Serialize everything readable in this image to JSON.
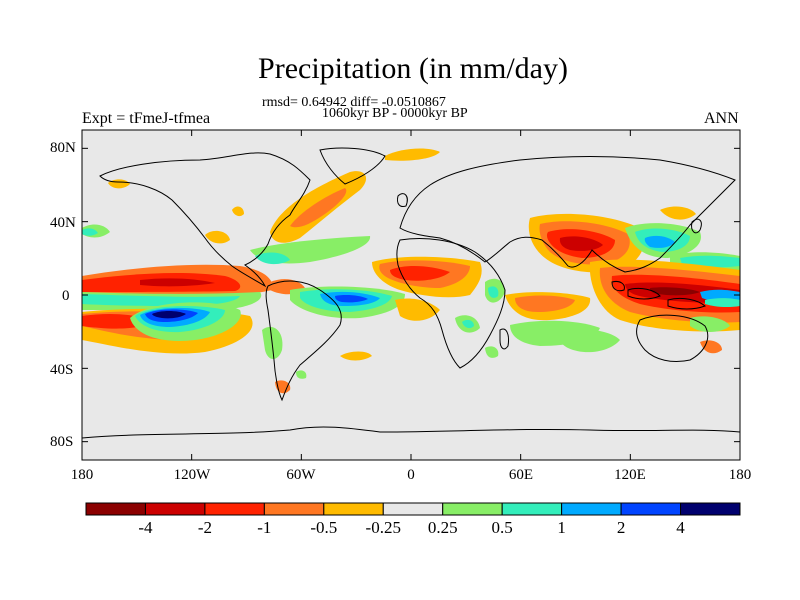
{
  "title": "Precipitation (in mm/day)",
  "stats_line": "rmsd= 0.64942 diff= -0.0510867",
  "period_line": "1060kyr BP - 0000kyr BP",
  "left_label": "Expt = tFmeJ-tfmea",
  "right_label": "ANN",
  "lat_labels": [
    "80N",
    "40N",
    "0",
    "40S",
    "80S"
  ],
  "lon_labels": [
    "180",
    "120W",
    "60W",
    "0",
    "60E",
    "120E",
    "180"
  ],
  "colorbar": {
    "colors": [
      "#8b0000",
      "#cc0000",
      "#ff2200",
      "#ff7722",
      "#ffbb00",
      "#e8e8e8",
      "#88ee66",
      "#33eebb",
      "#00aaff",
      "#0044ff",
      "#00006e"
    ],
    "labels": [
      "-4",
      "-2",
      "-1",
      "-0.5",
      "-0.25",
      "0.25",
      "0.5",
      "1",
      "2",
      "4"
    ]
  },
  "map_colors": {
    "background": "#e8e8e8",
    "dry_strong": "#cc0000",
    "dry": "#ff2200",
    "dry_light": "#ff7722",
    "dry_weak": "#ffbb00",
    "wet_weak": "#88ee66",
    "wet": "#33eebb",
    "wet_strong": "#00aaff",
    "wet_max": "#0044ff",
    "wet_extreme": "#00006e"
  }
}
